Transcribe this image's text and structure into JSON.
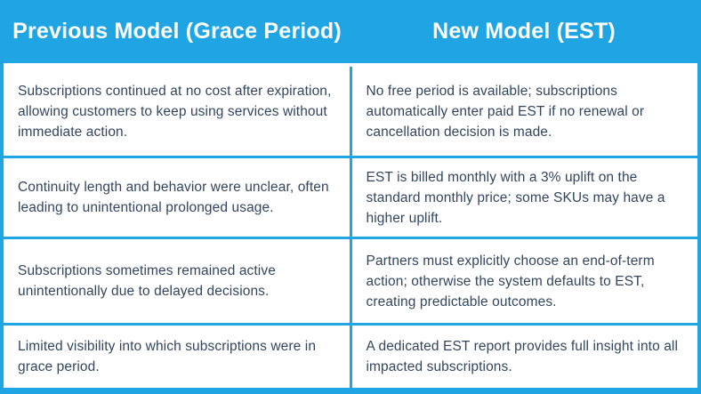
{
  "meta": {
    "accent_color": "#1FA5E4",
    "text_color": "#33465E",
    "header_text_color": "#FFFFFF"
  },
  "table": {
    "headers": {
      "previous": "Previous Model (Grace Period)",
      "new": "New Model (EST)"
    },
    "rows": [
      {
        "previous": "Subscriptions continued at no cost after expiration, allowing customers to keep using services without immediate action.",
        "new": "No free period is available; subscriptions automatically enter paid EST if no renewal or cancellation decision is made."
      },
      {
        "previous": "Continuity length and behavior were unclear, often leading to unintentional prolonged usage.",
        "new": "EST is billed monthly with a 3% uplift on the standard monthly price; some SKUs may have a higher uplift."
      },
      {
        "previous": "Subscriptions sometimes remained active unintentionally due to delayed decisions.",
        "new": "Partners must explicitly choose an end-of-term action; otherwise the system defaults to EST, creating predictable outcomes."
      },
      {
        "previous": "Limited visibility into which subscriptions were in grace period.",
        "new": "A dedicated EST report provides full insight into all impacted subscriptions."
      }
    ]
  }
}
